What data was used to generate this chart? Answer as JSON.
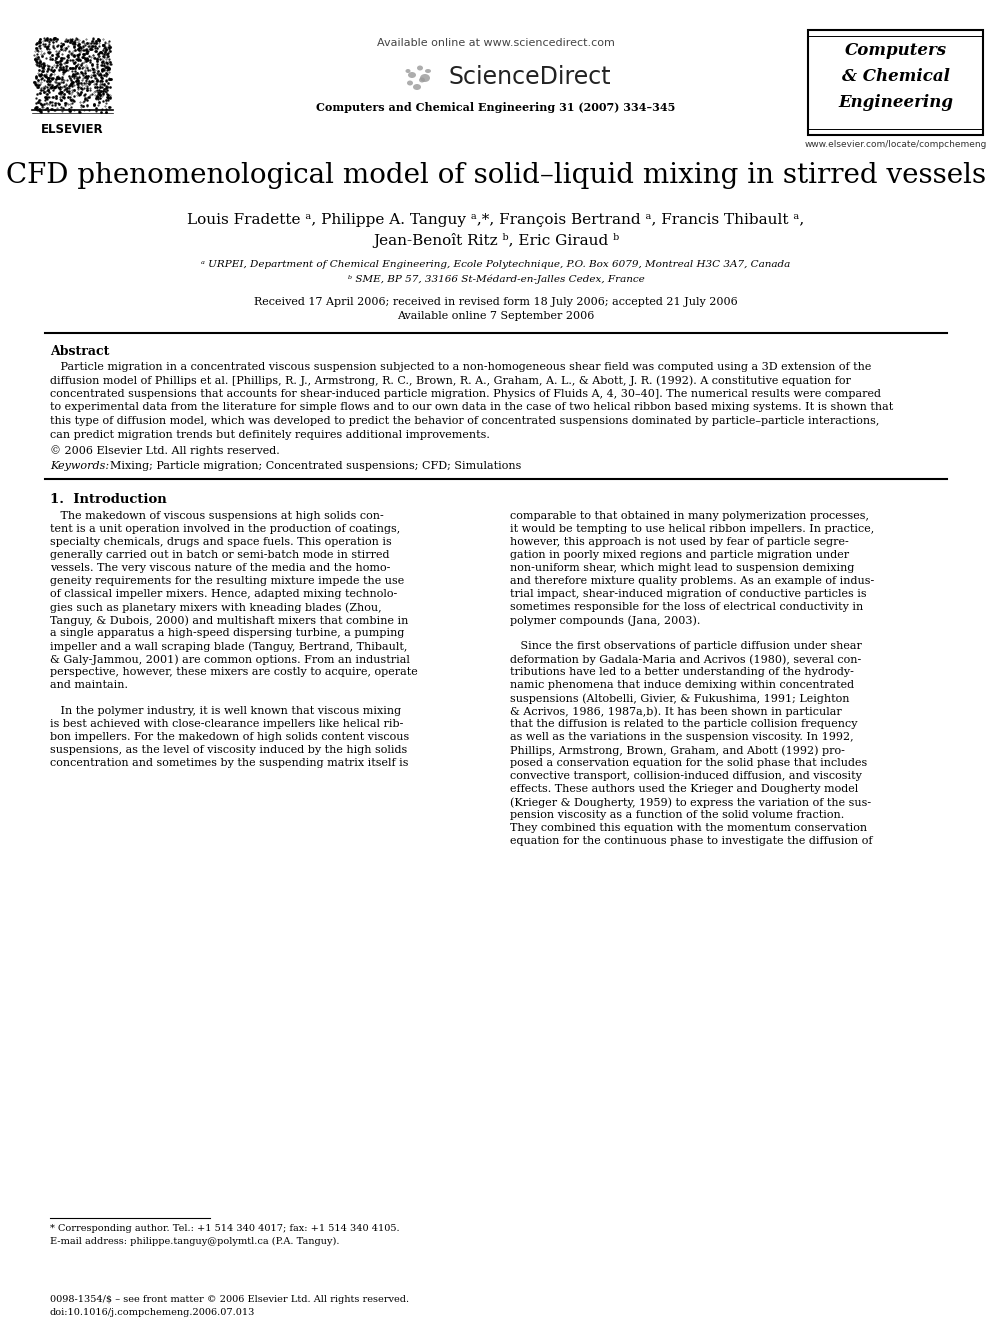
{
  "bg_color": "#ffffff",
  "title": "CFD phenomenological model of solid–liquid mixing in stirred vessels",
  "authors_line1": "Louis Fradette ᵃ, Philippe A. Tanguy ᵃ,*, François Bertrand ᵃ, Francis Thibault ᵃ,",
  "authors_line2": "Jean-Benoît Ritz ᵇ, Eric Giraud ᵇ",
  "affil_a": "ᵃ URPEI, Department of Chemical Engineering, Ecole Polytechnique, P.O. Box 6079, Montreal H3C 3A7, Canada",
  "affil_b": "ᵇ SME, BP 57, 33166 St-Médard-en-Jalles Cedex, France",
  "received": "Received 17 April 2006; received in revised form 18 July 2006; accepted 21 July 2006",
  "available": "Available online 7 September 2006",
  "header_avail": "Available online at www.sciencedirect.com",
  "header_sd": "ScienceDirect",
  "header_journal": "Computers and Chemical Engineering 31 (2007) 334–345",
  "journal_box_line1": "Computers",
  "journal_box_line2": "& Chemical",
  "journal_box_line3": "Engineering",
  "journal_url": "www.elsevier.com/locate/compchemeng",
  "elsevier_label": "ELSEVIER",
  "abstract_title": "Abstract",
  "copyright": "© 2006 Elsevier Ltd. All rights reserved.",
  "keywords": "Keywords:  Mixing; Particle migration; Concentrated suspensions; CFD; Simulations",
  "section1_title": "1.  Introduction",
  "footnote_star": "* Corresponding author. Tel.: +1 514 340 4017; fax: +1 514 340 4105.",
  "footnote_email": "E-mail address: philippe.tanguy@polymtl.ca (P.A. Tanguy).",
  "footer_issn": "0098-1354/$ – see front matter © 2006 Elsevier Ltd. All rights reserved.",
  "footer_doi": "doi:10.1016/j.compchemeng.2006.07.013",
  "abstract_lines": [
    "   Particle migration in a concentrated viscous suspension subjected to a non-homogeneous shear field was computed using a 3D extension of the",
    "diffusion model of Phillips et al. [Phillips, R. J., Armstrong, R. C., Brown, R. A., Graham, A. L., & Abott, J. R. (1992). A constitutive equation for",
    "concentrated suspensions that accounts for shear-induced particle migration. Physics of Fluids A, 4, 30–40]. The numerical results were compared",
    "to experimental data from the literature for simple flows and to our own data in the case of two helical ribbon based mixing systems. It is shown that",
    "this type of diffusion model, which was developed to predict the behavior of concentrated suspensions dominated by particle–particle interactions,",
    "can predict migration trends but definitely requires additional improvements."
  ],
  "col1_lines": [
    "   The makedown of viscous suspensions at high solids con-",
    "tent is a unit operation involved in the production of coatings,",
    "specialty chemicals, drugs and space fuels. This operation is",
    "generally carried out in batch or semi-batch mode in stirred",
    "vessels. The very viscous nature of the media and the homo-",
    "geneity requirements for the resulting mixture impede the use",
    "of classical impeller mixers. Hence, adapted mixing technolo-",
    "gies such as planetary mixers with kneading blades (Zhou,",
    "Tanguy, & Dubois, 2000) and multishaft mixers that combine in",
    "a single apparatus a high-speed dispersing turbine, a pumping",
    "impeller and a wall scraping blade (Tanguy, Bertrand, Thibault,",
    "& Galy-Jammou, 2001) are common options. From an industrial",
    "perspective, however, these mixers are costly to acquire, operate",
    "and maintain.",
    "",
    "   In the polymer industry, it is well known that viscous mixing",
    "is best achieved with close-clearance impellers like helical rib-",
    "bon impellers. For the makedown of high solids content viscous",
    "suspensions, as the level of viscosity induced by the high solids",
    "concentration and sometimes by the suspending matrix itself is"
  ],
  "col2_lines": [
    "comparable to that obtained in many polymerization processes,",
    "it would be tempting to use helical ribbon impellers. In practice,",
    "however, this approach is not used by fear of particle segre-",
    "gation in poorly mixed regions and particle migration under",
    "non-uniform shear, which might lead to suspension demixing",
    "and therefore mixture quality problems. As an example of indus-",
    "trial impact, shear-induced migration of conductive particles is",
    "sometimes responsible for the loss of electrical conductivity in",
    "polymer compounds (Jana, 2003).",
    "",
    "   Since the first observations of particle diffusion under shear",
    "deformation by Gadala-Maria and Acrivos (1980), several con-",
    "tributions have led to a better understanding of the hydrody-",
    "namic phenomena that induce demixing within concentrated",
    "suspensions (Altobelli, Givier, & Fukushima, 1991; Leighton",
    "& Acrivos, 1986, 1987a,b). It has been shown in particular",
    "that the diffusion is related to the particle collision frequency",
    "as well as the variations in the suspension viscosity. In 1992,",
    "Phillips, Armstrong, Brown, Graham, and Abott (1992) pro-",
    "posed a conservation equation for the solid phase that includes",
    "convective transport, collision-induced diffusion, and viscosity",
    "effects. These authors used the Krieger and Dougherty model",
    "(Krieger & Dougherty, 1959) to express the variation of the sus-",
    "pension viscosity as a function of the solid volume fraction.",
    "They combined this equation with the momentum conservation",
    "equation for the continuous phase to investigate the diffusion of"
  ]
}
